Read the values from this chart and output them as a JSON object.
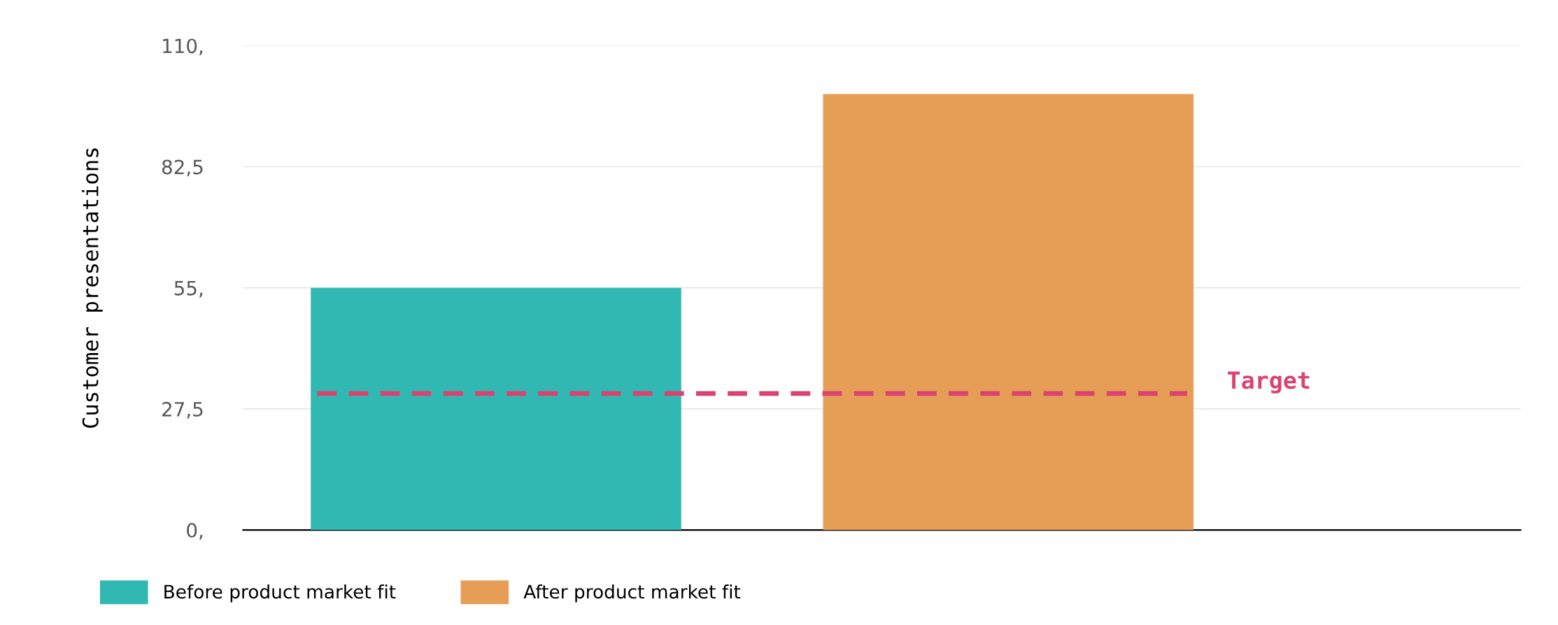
{
  "chart_data": {
    "type": "bar",
    "ylabel": "Customer presentations",
    "categories": [
      null
    ],
    "series": [
      {
        "name": "Before product market fit",
        "color": "#32b8b2",
        "values": [
          55
        ]
      },
      {
        "name": "After product market fit",
        "color": "#e69e57",
        "values": [
          99
        ]
      }
    ],
    "ylim": [
      0,
      110
    ],
    "yticks": [
      {
        "value": 0,
        "label": "0,"
      },
      {
        "value": 27.5,
        "label": "27,5"
      },
      {
        "value": 55,
        "label": "55,"
      },
      {
        "value": 82.5,
        "label": "82,5"
      },
      {
        "value": 110,
        "label": "110,"
      }
    ],
    "ref_lines": [
      {
        "axis": "y",
        "value": 31,
        "label": "Target",
        "color": "#d9436f",
        "line_style": "dashed"
      }
    ],
    "grid": "y",
    "legend": "bottom left"
  }
}
